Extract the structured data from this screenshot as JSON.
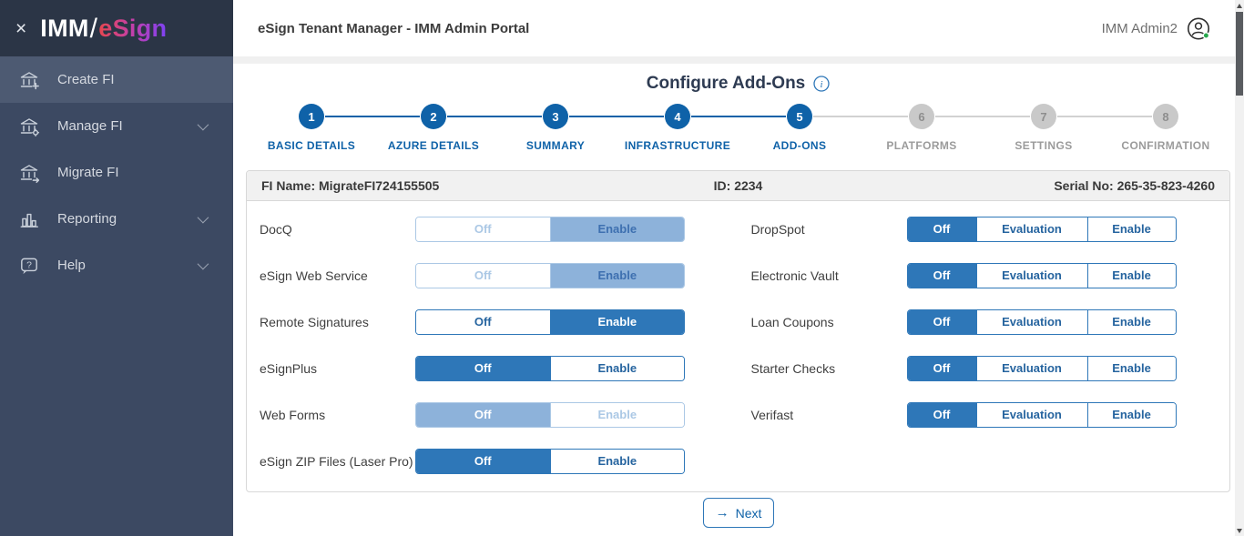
{
  "sidebar": {
    "close_glyph": "×",
    "logo": {
      "imm": "IMM",
      "slash": "/",
      "esign": "eSign"
    },
    "items": [
      {
        "label": "Create FI",
        "icon": "bank-plus-icon",
        "active": true,
        "expandable": false
      },
      {
        "label": "Manage FI",
        "icon": "bank-gear-icon",
        "active": false,
        "expandable": true
      },
      {
        "label": "Migrate FI",
        "icon": "bank-arrow-icon",
        "active": false,
        "expandable": false
      },
      {
        "label": "Reporting",
        "icon": "bar-chart-icon",
        "active": false,
        "expandable": true
      },
      {
        "label": "Help",
        "icon": "question-bubble-icon",
        "active": false,
        "expandable": true
      }
    ]
  },
  "header": {
    "title": "eSign Tenant Manager - IMM Admin Portal",
    "user": "IMM Admin2",
    "user_status": "online"
  },
  "page": {
    "title": "Configure Add-Ons"
  },
  "stepper": {
    "steps": [
      {
        "num": "1",
        "label": "BASIC DETAILS",
        "reached": true
      },
      {
        "num": "2",
        "label": "AZURE DETAILS",
        "reached": true
      },
      {
        "num": "3",
        "label": "SUMMARY",
        "reached": true
      },
      {
        "num": "4",
        "label": "INFRASTRUCTURE",
        "reached": true
      },
      {
        "num": "5",
        "label": "ADD-ONS",
        "reached": true
      },
      {
        "num": "6",
        "label": "PLATFORMS",
        "reached": false
      },
      {
        "num": "7",
        "label": "SETTINGS",
        "reached": false
      },
      {
        "num": "8",
        "label": "CONFIRMATION",
        "reached": false
      }
    ]
  },
  "fi_bar": {
    "fi_name": "FI Name: MigrateFI724155505",
    "id": "ID: 2234",
    "serial": "Serial No: 265-35-823-4260"
  },
  "addons": {
    "left": [
      {
        "name": "DocQ",
        "options": [
          "Off",
          "Enable"
        ],
        "selected": "Enable",
        "disabled": true,
        "selected_text": "#3e70b0"
      },
      {
        "name": "eSign Web Service",
        "options": [
          "Off",
          "Enable"
        ],
        "selected": "Enable",
        "disabled": true,
        "selected_text": "#3e70b0"
      },
      {
        "name": "Remote Signatures",
        "options": [
          "Off",
          "Enable"
        ],
        "selected": "Enable",
        "disabled": false
      },
      {
        "name": "eSignPlus",
        "options": [
          "Off",
          "Enable"
        ],
        "selected": "Off",
        "disabled": false
      },
      {
        "name": "Web Forms",
        "options": [
          "Off",
          "Enable"
        ],
        "selected": "Off",
        "disabled": true,
        "selected_text": "#ffffff"
      },
      {
        "name": "eSign ZIP Files (Laser Pro)",
        "options": [
          "Off",
          "Enable"
        ],
        "selected": "Off",
        "disabled": false
      }
    ],
    "right": [
      {
        "name": "DropSpot",
        "options": [
          "Off",
          "Evaluation",
          "Enable"
        ],
        "selected": "Off",
        "disabled": false
      },
      {
        "name": "Electronic Vault",
        "options": [
          "Off",
          "Evaluation",
          "Enable"
        ],
        "selected": "Off",
        "disabled": false
      },
      {
        "name": "Loan Coupons",
        "options": [
          "Off",
          "Evaluation",
          "Enable"
        ],
        "selected": "Off",
        "disabled": false
      },
      {
        "name": "Starter Checks",
        "options": [
          "Off",
          "Evaluation",
          "Enable"
        ],
        "selected": "Off",
        "disabled": false
      },
      {
        "name": "Verifast",
        "options": [
          "Off",
          "Evaluation",
          "Enable"
        ],
        "selected": "Off",
        "disabled": false
      }
    ]
  },
  "next_button": {
    "arrow": "→",
    "label": "Next"
  },
  "colors": {
    "accent_blue": "#2e77b8",
    "step_blue": "#0f62a8",
    "disabled_selected_blue": "#8db2da",
    "disabled_border_blue": "#abc8e5",
    "status_green": "#27a84d",
    "sidebar_bg": "#3c4962",
    "sidebar_top_bg": "#2b3546"
  }
}
